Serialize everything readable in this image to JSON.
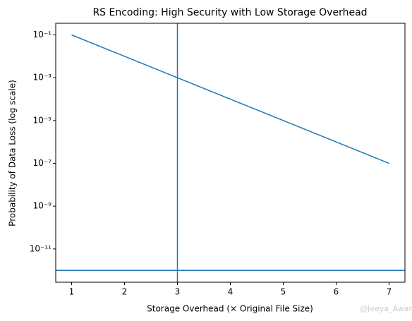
{
  "chart_data": {
    "type": "line",
    "title": "RS Encoding: High Security with Low Storage Overhead",
    "xlabel": "Storage Overhead (× Original File Size)",
    "ylabel": "Probability of Data Loss (log scale)",
    "x": [
      1,
      2,
      3,
      4,
      5,
      6,
      7
    ],
    "series": [
      {
        "color": "#1f77b4",
        "values": [
          0.1,
          0.01,
          0.001,
          0.0001,
          1e-05,
          1e-06,
          1e-07
        ]
      }
    ],
    "vline_x": 3,
    "hline_y": 1e-12,
    "ref_color": "#1f77b4",
    "xlim": [
      0.7,
      7.3
    ],
    "xticks": [
      1,
      2,
      3,
      4,
      5,
      6,
      7
    ],
    "ylim": [
      2.8e-13,
      0.35
    ],
    "ylog": true,
    "yticks": [
      {
        "value": 0.1,
        "label": "10⁻¹"
      },
      {
        "value": 0.001,
        "label": "10⁻³"
      },
      {
        "value": 1e-05,
        "label": "10⁻⁵"
      },
      {
        "value": 1e-07,
        "label": "10⁻⁷"
      },
      {
        "value": 1e-09,
        "label": "10⁻⁹"
      },
      {
        "value": 1e-11,
        "label": "10⁻¹¹"
      }
    ],
    "watermark": "@Jeeya_Awar"
  }
}
